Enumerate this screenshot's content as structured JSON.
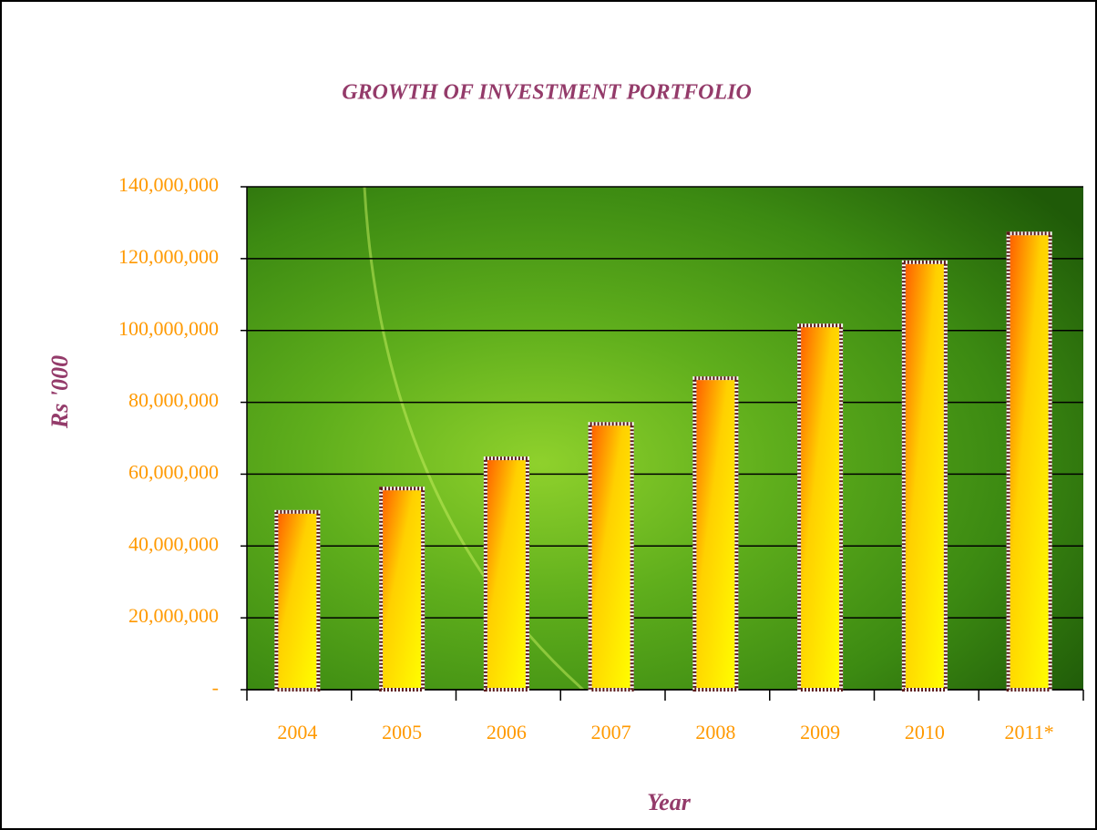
{
  "chart_data": {
    "type": "bar",
    "title": "GROWTH OF INVESTMENT PORTFOLIO",
    "y_label": "Rs '000",
    "x_label": "Year",
    "categories": [
      "2004",
      "2005",
      "2006",
      "2007",
      "2008",
      "2009",
      "2010",
      "2011*"
    ],
    "values": [
      49500000,
      56000000,
      64400000,
      74000000,
      86700000,
      101400000,
      119000000,
      127000000
    ],
    "color": "#ffd000",
    "ylim": [
      0,
      140000000
    ],
    "yticks": [
      {
        "value": 0,
        "label": "-"
      },
      {
        "value": 20000000,
        "label": "20,000,000"
      },
      {
        "value": 40000000,
        "label": "40,000,000"
      },
      {
        "value": 60000000,
        "label": "60,000,000"
      },
      {
        "value": 80000000,
        "label": "80,000,000"
      },
      {
        "value": 100000000,
        "label": "100,000,000"
      },
      {
        "value": 120000000,
        "label": "120,000,000"
      },
      {
        "value": 140000000,
        "label": "140,000,000"
      }
    ],
    "grid": true
  }
}
